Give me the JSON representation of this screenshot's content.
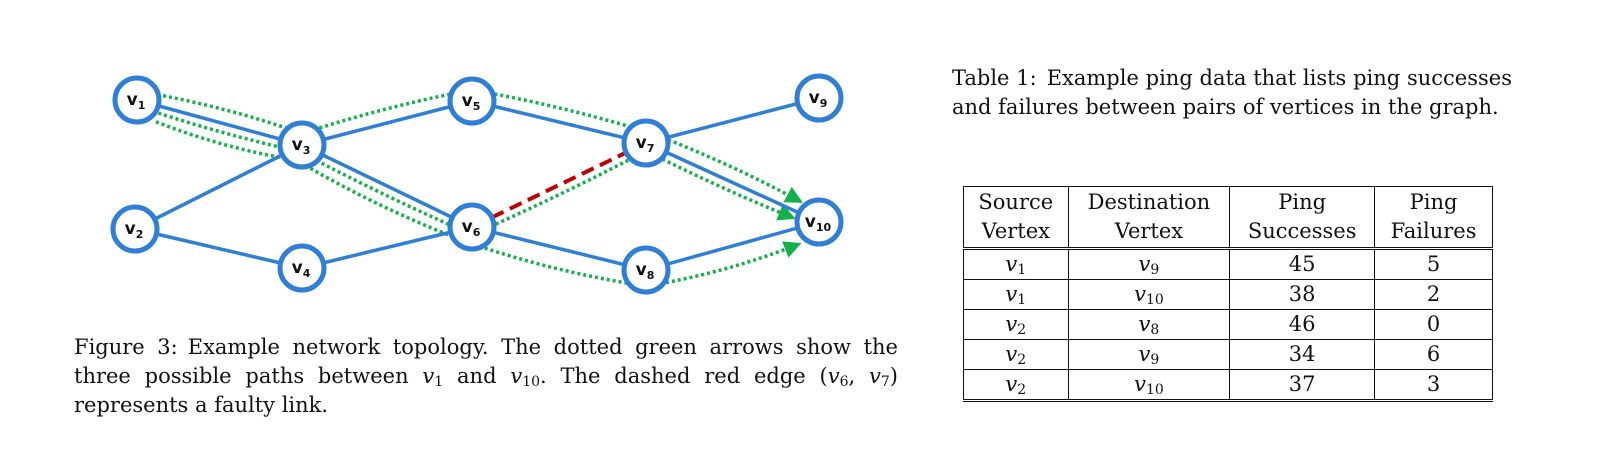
{
  "figure": {
    "nodes": [
      {
        "id": "v1",
        "base": "v",
        "sub": "1"
      },
      {
        "id": "v2",
        "base": "v",
        "sub": "2"
      },
      {
        "id": "v3",
        "base": "v",
        "sub": "3"
      },
      {
        "id": "v4",
        "base": "v",
        "sub": "4"
      },
      {
        "id": "v5",
        "base": "v",
        "sub": "5"
      },
      {
        "id": "v6",
        "base": "v",
        "sub": "6"
      },
      {
        "id": "v7",
        "base": "v",
        "sub": "7"
      },
      {
        "id": "v8",
        "base": "v",
        "sub": "8"
      },
      {
        "id": "v9",
        "base": "v",
        "sub": "9"
      },
      {
        "id": "v10",
        "base": "v",
        "sub": "10"
      }
    ],
    "edges": [
      [
        "v1",
        "v3"
      ],
      [
        "v2",
        "v3"
      ],
      [
        "v2",
        "v4"
      ],
      [
        "v3",
        "v5"
      ],
      [
        "v3",
        "v6"
      ],
      [
        "v4",
        "v6"
      ],
      [
        "v5",
        "v7"
      ],
      [
        "v6",
        "v8"
      ],
      [
        "v7",
        "v9"
      ],
      [
        "v7",
        "v10"
      ],
      [
        "v8",
        "v10"
      ]
    ],
    "faulty_edge": [
      "v6",
      "v7"
    ],
    "paths": [
      [
        "v1",
        "v3",
        "v5",
        "v7",
        "v10"
      ],
      [
        "v1",
        "v3",
        "v6",
        "v7",
        "v10"
      ],
      [
        "v1",
        "v3",
        "v6",
        "v8",
        "v10"
      ]
    ],
    "colors": {
      "node_stroke": "#2f7fd6",
      "edge": "#2f7fd6",
      "faulty": "#c00000",
      "path": "#14b14a"
    },
    "caption": {
      "label": "Figure 3:",
      "p1": "Example network topology.  The dotted green arrows show the three possible paths between ",
      "v_start": "v",
      "v_start_sub": "1",
      "and": " and ",
      "v_end": "v",
      "v_end_sub": "10",
      "p2": ".  The dashed red edge (",
      "e1": "v",
      "e1_sub": "6",
      "comma": ", ",
      "e2": "v",
      "e2_sub": "7",
      "p3": ") represents a faulty link."
    }
  },
  "table": {
    "caption": {
      "label": "Table 1:",
      "text": "Example ping data that lists ping successes and failures between pairs of vertices in the graph."
    },
    "headers": [
      [
        "Source",
        "Vertex"
      ],
      [
        "Destination",
        "Vertex"
      ],
      [
        "Ping",
        "Successes"
      ],
      [
        "Ping",
        "Failures"
      ]
    ],
    "rows": [
      {
        "src": "v",
        "src_sub": "1",
        "dst": "v",
        "dst_sub": "9",
        "succ": "45",
        "fail": "5"
      },
      {
        "src": "v",
        "src_sub": "1",
        "dst": "v",
        "dst_sub": "10",
        "succ": "38",
        "fail": "2"
      },
      {
        "src": "v",
        "src_sub": "2",
        "dst": "v",
        "dst_sub": "8",
        "succ": "46",
        "fail": "0"
      },
      {
        "src": "v",
        "src_sub": "2",
        "dst": "v",
        "dst_sub": "9",
        "succ": "34",
        "fail": "6"
      },
      {
        "src": "v",
        "src_sub": "2",
        "dst": "v",
        "dst_sub": "10",
        "succ": "37",
        "fail": "3"
      }
    ]
  }
}
